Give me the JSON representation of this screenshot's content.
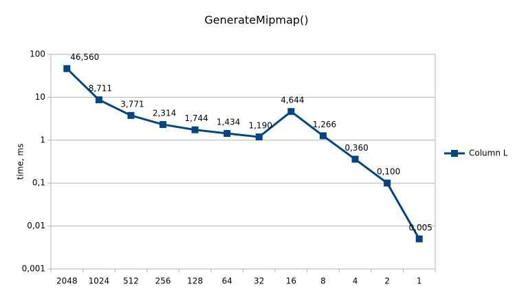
{
  "chart_data": {
    "type": "line",
    "title": "GenerateMipmap()",
    "y_label": "time, ms",
    "categories": [
      "2048",
      "1024",
      "512",
      "256",
      "128",
      "64",
      "32",
      "16",
      "8",
      "4",
      "2",
      "1"
    ],
    "series": [
      {
        "name": "Column L",
        "color": "#004586",
        "values": [
          46.56,
          8.711,
          3.771,
          2.314,
          1.744,
          1.434,
          1.19,
          4.644,
          1.266,
          0.36,
          0.1,
          0.005
        ],
        "value_labels": [
          "46,560",
          "8,711",
          "3,771",
          "2,314",
          "1,744",
          "1,434",
          "1,190",
          "4,644",
          "1,266",
          "0,360",
          "0,100",
          "0,005"
        ]
      }
    ],
    "y_scale": "log",
    "ylim": [
      0.001,
      100
    ],
    "yticks": [
      {
        "value": 0.001,
        "label": "0,001"
      },
      {
        "value": 0.01,
        "label": "0,01"
      },
      {
        "value": 0.1,
        "label": "0,1"
      },
      1,
      10,
      100
    ],
    "grid": true,
    "legend": "right"
  }
}
